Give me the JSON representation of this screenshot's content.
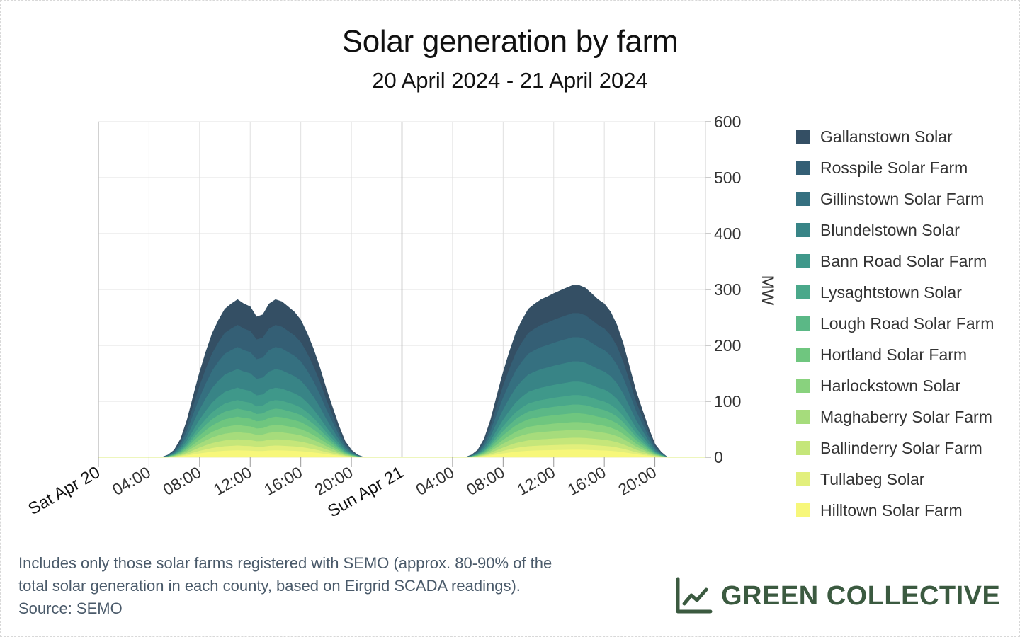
{
  "chart_data": {
    "type": "area",
    "stacked": true,
    "title": "Solar generation by farm",
    "subtitle": "20 April 2024 - 21 April 2024",
    "ylabel": "MW",
    "ylim": [
      0,
      600
    ],
    "yticks": [
      0,
      100,
      200,
      300,
      400,
      500,
      600
    ],
    "xlim_hours": [
      0,
      48
    ],
    "xticks": [
      {
        "hour": 0,
        "label": "Sat Apr 20",
        "day": true
      },
      {
        "hour": 4,
        "label": "04:00"
      },
      {
        "hour": 8,
        "label": "08:00"
      },
      {
        "hour": 12,
        "label": "12:00"
      },
      {
        "hour": 16,
        "label": "16:00"
      },
      {
        "hour": 20,
        "label": "20:00"
      },
      {
        "hour": 24,
        "label": "Sun Apr 21",
        "day": true
      },
      {
        "hour": 28,
        "label": "04:00"
      },
      {
        "hour": 32,
        "label": "08:00"
      },
      {
        "hour": 36,
        "label": "12:00"
      },
      {
        "hour": 40,
        "label": "16:00"
      },
      {
        "hour": 44,
        "label": "20:00"
      }
    ],
    "grid": true,
    "legend_position": "right",
    "x": [
      0,
      5,
      5.5,
      6,
      6.5,
      7,
      7.5,
      8,
      8.5,
      9,
      9.5,
      10,
      10.5,
      11,
      11.5,
      12,
      12.5,
      13,
      13.5,
      14,
      14.5,
      15,
      15.5,
      16,
      16.5,
      17,
      17.5,
      18,
      18.5,
      19,
      19.5,
      20,
      20.5,
      21,
      24,
      29,
      29.5,
      30,
      30.5,
      31,
      31.5,
      32,
      32.5,
      33,
      33.5,
      34,
      34.5,
      35,
      35.5,
      36,
      36.5,
      37,
      37.5,
      38,
      38.5,
      39,
      39.5,
      40,
      40.5,
      41,
      41.5,
      42,
      42.5,
      43,
      43.5,
      44,
      44.5,
      45,
      48
    ],
    "series": [
      {
        "name": "Hilltown Solar Farm",
        "color": "#f7f77a",
        "values": [
          0,
          0,
          0.2,
          0.6,
          1.4,
          2.8,
          4.6,
          6.4,
          8.0,
          9.4,
          10.4,
          11.2,
          11.6,
          12.0,
          11.6,
          11.4,
          10.6,
          10.8,
          11.6,
          12.0,
          11.8,
          11.4,
          11.0,
          10.4,
          9.4,
          8.2,
          6.8,
          5.2,
          3.8,
          2.4,
          1.2,
          0.6,
          0.2,
          0,
          0,
          0,
          0.2,
          0.6,
          1.4,
          2.8,
          4.6,
          6.4,
          8.0,
          9.4,
          10.4,
          11.2,
          11.6,
          12.0,
          12.2,
          12.4,
          12.6,
          12.8,
          13.0,
          13.0,
          12.8,
          12.4,
          12.0,
          11.6,
          11.0,
          10.0,
          8.6,
          6.8,
          5.0,
          3.6,
          2.2,
          1.0,
          0.4,
          0,
          0
        ]
      },
      {
        "name": "Tullabeg Solar",
        "color": "#e2ef7c",
        "values": [
          0,
          0,
          0.1,
          0.4,
          1.0,
          2.0,
          3.3,
          4.6,
          5.7,
          6.7,
          7.4,
          8.0,
          8.3,
          8.5,
          8.3,
          8.1,
          7.6,
          7.7,
          8.3,
          8.5,
          8.4,
          8.1,
          7.8,
          7.4,
          6.7,
          5.8,
          4.9,
          3.7,
          2.7,
          1.7,
          0.9,
          0.4,
          0.1,
          0,
          0,
          0,
          0.1,
          0.4,
          1.0,
          2.0,
          3.3,
          4.6,
          5.7,
          6.7,
          7.4,
          8.0,
          8.3,
          8.5,
          8.7,
          8.9,
          9.0,
          9.1,
          9.2,
          9.2,
          9.1,
          8.9,
          8.6,
          8.3,
          7.8,
          7.1,
          6.1,
          4.9,
          3.6,
          2.6,
          1.6,
          0.7,
          0.3,
          0,
          0
        ]
      },
      {
        "name": "Ballinderry Solar Farm",
        "color": "#c5e67a",
        "values": [
          0,
          0,
          0.2,
          0.5,
          1.3,
          2.6,
          4.3,
          6.0,
          7.5,
          8.8,
          9.7,
          10.5,
          10.9,
          11.2,
          10.9,
          10.7,
          10.0,
          10.1,
          10.9,
          11.2,
          11.1,
          10.7,
          10.3,
          9.7,
          8.8,
          7.7,
          6.4,
          4.9,
          3.6,
          2.3,
          1.1,
          0.5,
          0.2,
          0,
          0,
          0,
          0.2,
          0.5,
          1.3,
          2.6,
          4.3,
          6.0,
          7.5,
          8.8,
          9.7,
          10.5,
          10.9,
          11.2,
          11.4,
          11.7,
          11.8,
          12.0,
          12.2,
          12.2,
          12.0,
          11.7,
          11.3,
          10.9,
          10.3,
          9.4,
          8.0,
          6.4,
          4.7,
          3.4,
          2.1,
          0.9,
          0.4,
          0,
          0
        ]
      },
      {
        "name": "Maghaberry Solar Farm",
        "color": "#a6dc7c",
        "values": [
          0,
          0,
          0.2,
          0.6,
          1.5,
          3.0,
          5.0,
          6.9,
          8.6,
          10.1,
          11.2,
          12.1,
          12.5,
          12.9,
          12.5,
          12.3,
          11.4,
          11.6,
          12.5,
          12.9,
          12.7,
          12.3,
          11.8,
          11.2,
          10.1,
          8.8,
          7.3,
          5.6,
          4.1,
          2.6,
          1.3,
          0.6,
          0.2,
          0,
          0,
          0,
          0.2,
          0.6,
          1.5,
          3.0,
          5.0,
          6.9,
          8.6,
          10.1,
          11.2,
          12.1,
          12.5,
          12.9,
          13.1,
          13.4,
          13.6,
          13.8,
          14.0,
          14.0,
          13.8,
          13.4,
          12.9,
          12.5,
          11.8,
          10.8,
          9.3,
          7.3,
          5.4,
          3.9,
          2.4,
          1.1,
          0.4,
          0,
          0
        ]
      },
      {
        "name": "Harlockstown Solar",
        "color": "#89d27e",
        "values": [
          0,
          0,
          0.2,
          0.6,
          1.5,
          3.0,
          5.0,
          6.9,
          8.6,
          10.1,
          11.2,
          12.1,
          12.5,
          12.9,
          12.5,
          12.3,
          11.4,
          11.6,
          12.5,
          12.9,
          12.7,
          12.3,
          11.8,
          11.2,
          10.1,
          8.8,
          7.3,
          5.6,
          4.1,
          2.6,
          1.3,
          0.6,
          0.2,
          0,
          0,
          0,
          0.2,
          0.6,
          1.5,
          3.0,
          5.0,
          6.9,
          8.6,
          10.1,
          11.2,
          12.1,
          12.5,
          12.9,
          13.1,
          13.4,
          13.6,
          13.8,
          14.0,
          14.0,
          13.8,
          13.4,
          12.9,
          12.5,
          11.8,
          10.8,
          9.3,
          7.3,
          5.4,
          3.9,
          2.4,
          1.1,
          0.4,
          0,
          0
        ]
      },
      {
        "name": "Hortland Solar Farm",
        "color": "#6fc67f",
        "values": [
          0,
          0,
          0.2,
          0.7,
          1.7,
          3.4,
          5.6,
          7.8,
          9.7,
          11.4,
          12.6,
          13.6,
          14.1,
          14.5,
          14.1,
          13.8,
          12.9,
          13.1,
          14.1,
          14.5,
          14.3,
          13.8,
          13.3,
          12.6,
          11.4,
          9.9,
          8.2,
          6.3,
          4.6,
          2.9,
          1.5,
          0.7,
          0.2,
          0,
          0,
          0,
          0.2,
          0.7,
          1.7,
          3.4,
          5.6,
          7.8,
          9.7,
          11.4,
          12.6,
          13.6,
          14.1,
          14.5,
          14.8,
          15.0,
          15.3,
          15.5,
          15.7,
          15.7,
          15.5,
          15.0,
          14.5,
          14.1,
          13.3,
          12.1,
          10.4,
          8.2,
          6.1,
          4.4,
          2.7,
          1.2,
          0.5,
          0,
          0
        ]
      },
      {
        "name": "Lough Road Solar Farm",
        "color": "#5bb886",
        "values": [
          0,
          0,
          0.2,
          0.7,
          1.7,
          3.4,
          5.6,
          7.8,
          9.7,
          11.4,
          12.6,
          13.6,
          14.1,
          14.5,
          14.1,
          13.8,
          12.9,
          13.1,
          14.1,
          14.5,
          14.3,
          13.8,
          13.3,
          12.6,
          11.4,
          9.9,
          8.2,
          6.3,
          4.6,
          2.9,
          1.5,
          0.7,
          0.2,
          0,
          0,
          0,
          0.2,
          0.7,
          1.7,
          3.4,
          5.6,
          7.8,
          9.7,
          11.4,
          12.6,
          13.6,
          14.1,
          14.5,
          14.8,
          15.0,
          15.3,
          15.5,
          15.7,
          15.7,
          15.5,
          15.0,
          14.5,
          14.1,
          13.3,
          12.1,
          10.4,
          8.2,
          6.1,
          4.4,
          2.7,
          1.2,
          0.5,
          0,
          0
        ]
      },
      {
        "name": "Lysaghtstown Solar",
        "color": "#4aa88a",
        "values": [
          0,
          0,
          0.2,
          0.7,
          1.8,
          3.6,
          6.0,
          8.3,
          10.3,
          12.1,
          13.4,
          14.5,
          15.0,
          15.4,
          15.0,
          14.7,
          13.7,
          13.9,
          15.0,
          15.4,
          15.2,
          14.7,
          14.2,
          13.4,
          12.1,
          10.6,
          8.8,
          6.7,
          4.9,
          3.1,
          1.6,
          0.7,
          0.2,
          0,
          0,
          0,
          0.2,
          0.7,
          1.8,
          3.6,
          6.0,
          8.3,
          10.3,
          12.1,
          13.4,
          14.5,
          15.0,
          15.4,
          15.7,
          16.0,
          16.3,
          16.5,
          16.8,
          16.8,
          16.5,
          16.0,
          15.4,
          15.0,
          14.2,
          12.9,
          11.1,
          8.8,
          6.5,
          4.7,
          2.9,
          1.3,
          0.5,
          0,
          0
        ]
      },
      {
        "name": "Bann Road Solar Farm",
        "color": "#3f988a",
        "values": [
          0,
          0,
          0.3,
          1.0,
          2.6,
          5.2,
          8.6,
          11.9,
          14.8,
          17.4,
          19.2,
          20.8,
          21.5,
          22.1,
          21.5,
          21.1,
          19.7,
          20.0,
          21.5,
          22.1,
          21.8,
          21.1,
          20.4,
          19.2,
          17.4,
          15.2,
          12.6,
          9.6,
          7.0,
          4.5,
          2.2,
          1.0,
          0.3,
          0,
          0,
          0,
          0.3,
          1.0,
          2.6,
          5.2,
          8.6,
          11.9,
          14.8,
          17.4,
          19.2,
          20.8,
          21.5,
          22.1,
          22.5,
          23.0,
          23.4,
          23.8,
          24.1,
          24.1,
          23.8,
          23.0,
          22.1,
          21.5,
          20.4,
          18.5,
          15.9,
          12.6,
          9.3,
          6.7,
          4.1,
          1.9,
          0.7,
          0,
          0
        ]
      },
      {
        "name": "Blundelstown Solar",
        "color": "#388486",
        "values": [
          0,
          0,
          0.5,
          1.5,
          3.9,
          7.8,
          12.9,
          17.9,
          22.3,
          26.1,
          28.9,
          31.2,
          32.3,
          33.2,
          32.3,
          31.7,
          29.6,
          30.1,
          32.3,
          33.2,
          32.8,
          31.7,
          30.6,
          28.9,
          26.1,
          22.9,
          19.0,
          14.5,
          10.6,
          6.7,
          3.4,
          1.5,
          0.5,
          0,
          0,
          0,
          0.5,
          1.5,
          3.9,
          7.8,
          12.9,
          17.9,
          22.3,
          26.1,
          28.9,
          31.2,
          32.3,
          33.2,
          33.8,
          34.5,
          35.1,
          35.7,
          36.3,
          36.3,
          35.7,
          34.5,
          33.2,
          32.3,
          30.6,
          27.9,
          23.9,
          19.0,
          14.0,
          10.0,
          6.1,
          2.8,
          1.1,
          0,
          0
        ]
      },
      {
        "name": "Gillinstown Solar Farm",
        "color": "#357080",
        "values": [
          0,
          0,
          0.6,
          1.8,
          4.6,
          9.3,
          15.4,
          21.3,
          26.5,
          31.1,
          34.4,
          37.2,
          38.5,
          39.5,
          38.5,
          37.8,
          35.2,
          35.8,
          38.5,
          39.5,
          39.0,
          37.8,
          36.5,
          34.4,
          31.1,
          27.3,
          22.6,
          17.3,
          12.6,
          8.0,
          4.0,
          1.8,
          0.6,
          0,
          0,
          0,
          0.6,
          1.8,
          4.6,
          9.3,
          15.4,
          21.3,
          26.5,
          31.1,
          34.4,
          37.2,
          38.5,
          39.5,
          40.2,
          41.0,
          41.8,
          42.5,
          43.2,
          43.2,
          42.5,
          41.0,
          39.5,
          38.5,
          36.5,
          33.2,
          28.5,
          22.6,
          16.6,
          11.9,
          7.3,
          3.3,
          1.3,
          0,
          0
        ]
      },
      {
        "name": "Rosspile Solar Farm",
        "color": "#345f75",
        "values": [
          0,
          0,
          0.6,
          1.8,
          4.6,
          9.3,
          15.4,
          21.3,
          26.5,
          31.1,
          34.4,
          37.2,
          38.5,
          39.5,
          38.5,
          37.8,
          35.2,
          35.8,
          38.5,
          39.5,
          39.0,
          37.8,
          36.5,
          34.4,
          31.1,
          27.3,
          22.6,
          17.3,
          12.6,
          8.0,
          4.0,
          1.8,
          0.6,
          0,
          0,
          0,
          0.6,
          1.8,
          4.6,
          9.3,
          15.4,
          21.3,
          26.5,
          31.1,
          34.4,
          37.2,
          38.5,
          39.5,
          40.2,
          41.0,
          41.8,
          42.5,
          43.2,
          43.2,
          42.5,
          41.0,
          39.5,
          38.5,
          36.5,
          33.2,
          28.5,
          22.6,
          16.6,
          11.9,
          7.3,
          3.3,
          1.3,
          0,
          0
        ]
      },
      {
        "name": "Gallanstown Solar",
        "color": "#344f64",
        "values": [
          0,
          0,
          0.7,
          2.1,
          5.3,
          10.8,
          17.8,
          24.7,
          30.8,
          36.0,
          39.9,
          43.1,
          44.6,
          45.8,
          44.6,
          43.8,
          40.8,
          41.5,
          44.6,
          45.8,
          45.2,
          43.8,
          42.3,
          39.9,
          36.0,
          31.7,
          26.2,
          20.0,
          14.6,
          9.3,
          4.6,
          2.1,
          0.7,
          0,
          0,
          0,
          0.7,
          2.1,
          5.3,
          10.8,
          17.8,
          24.7,
          30.8,
          36.0,
          39.9,
          43.1,
          44.6,
          45.8,
          46.6,
          47.5,
          48.4,
          49.3,
          50.1,
          50.1,
          49.3,
          47.5,
          45.8,
          44.6,
          42.3,
          38.5,
          33.0,
          26.2,
          19.3,
          13.8,
          8.5,
          3.8,
          1.5,
          0,
          0
        ]
      }
    ]
  },
  "footnote": {
    "line1": "Includes only those solar farms registered with SEMO (approx. 80-90% of the",
    "line2": "total solar generation in each county, based on Eirgrid SCADA readings).",
    "line3": "Source: SEMO"
  },
  "brand": {
    "name": "GREEN COLLECTIVE",
    "icon": "line-chart-icon",
    "color": "#3b5a40"
  }
}
